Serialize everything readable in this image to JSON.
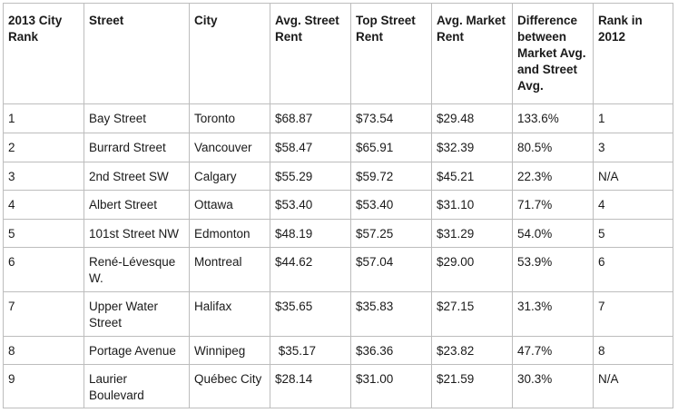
{
  "table": {
    "headers": [
      "2013 City Rank",
      "Street",
      "City",
      "Avg. Street Rent",
      "Top Street Rent",
      "Avg. Market Rent",
      "Difference between Market Avg. and Street Avg.",
      "Rank in 2012"
    ],
    "rows": [
      [
        "1",
        "Bay Street",
        "Toronto",
        "$68.87",
        "$73.54",
        "$29.48",
        "133.6%",
        "1"
      ],
      [
        "2",
        "Burrard Street",
        "Vancouver",
        "$58.47",
        "$65.91",
        "$32.39",
        "80.5%",
        "3"
      ],
      [
        "3",
        "2nd Street SW",
        "Calgary",
        "$55.29",
        "$59.72",
        "$45.21",
        "22.3%",
        "N/A"
      ],
      [
        "4",
        "Albert Street",
        "Ottawa",
        "$53.40",
        "$53.40",
        "$31.10",
        "71.7%",
        "4"
      ],
      [
        "5",
        "101st Street NW",
        "Edmonton",
        "$48.19",
        "$57.25",
        "$31.29",
        "54.0%",
        "5"
      ],
      [
        "6",
        "René-Lévesque W.",
        "Montreal",
        "$44.62",
        "$57.04",
        "$29.00",
        "53.9%",
        "6"
      ],
      [
        "7",
        "Upper Water Street",
        "Halifax",
        "$35.65",
        "$35.83",
        "$27.15",
        "31.3%",
        "7"
      ],
      [
        "8",
        "Portage Avenue",
        "Winnipeg",
        " $35.17",
        "$36.36",
        "$23.82",
        "47.7%",
        "8"
      ],
      [
        "9",
        "Laurier Boulevard",
        "Québec City",
        "$28.14",
        "$31.00",
        "$21.59",
        "30.3%",
        "N/A"
      ]
    ]
  }
}
